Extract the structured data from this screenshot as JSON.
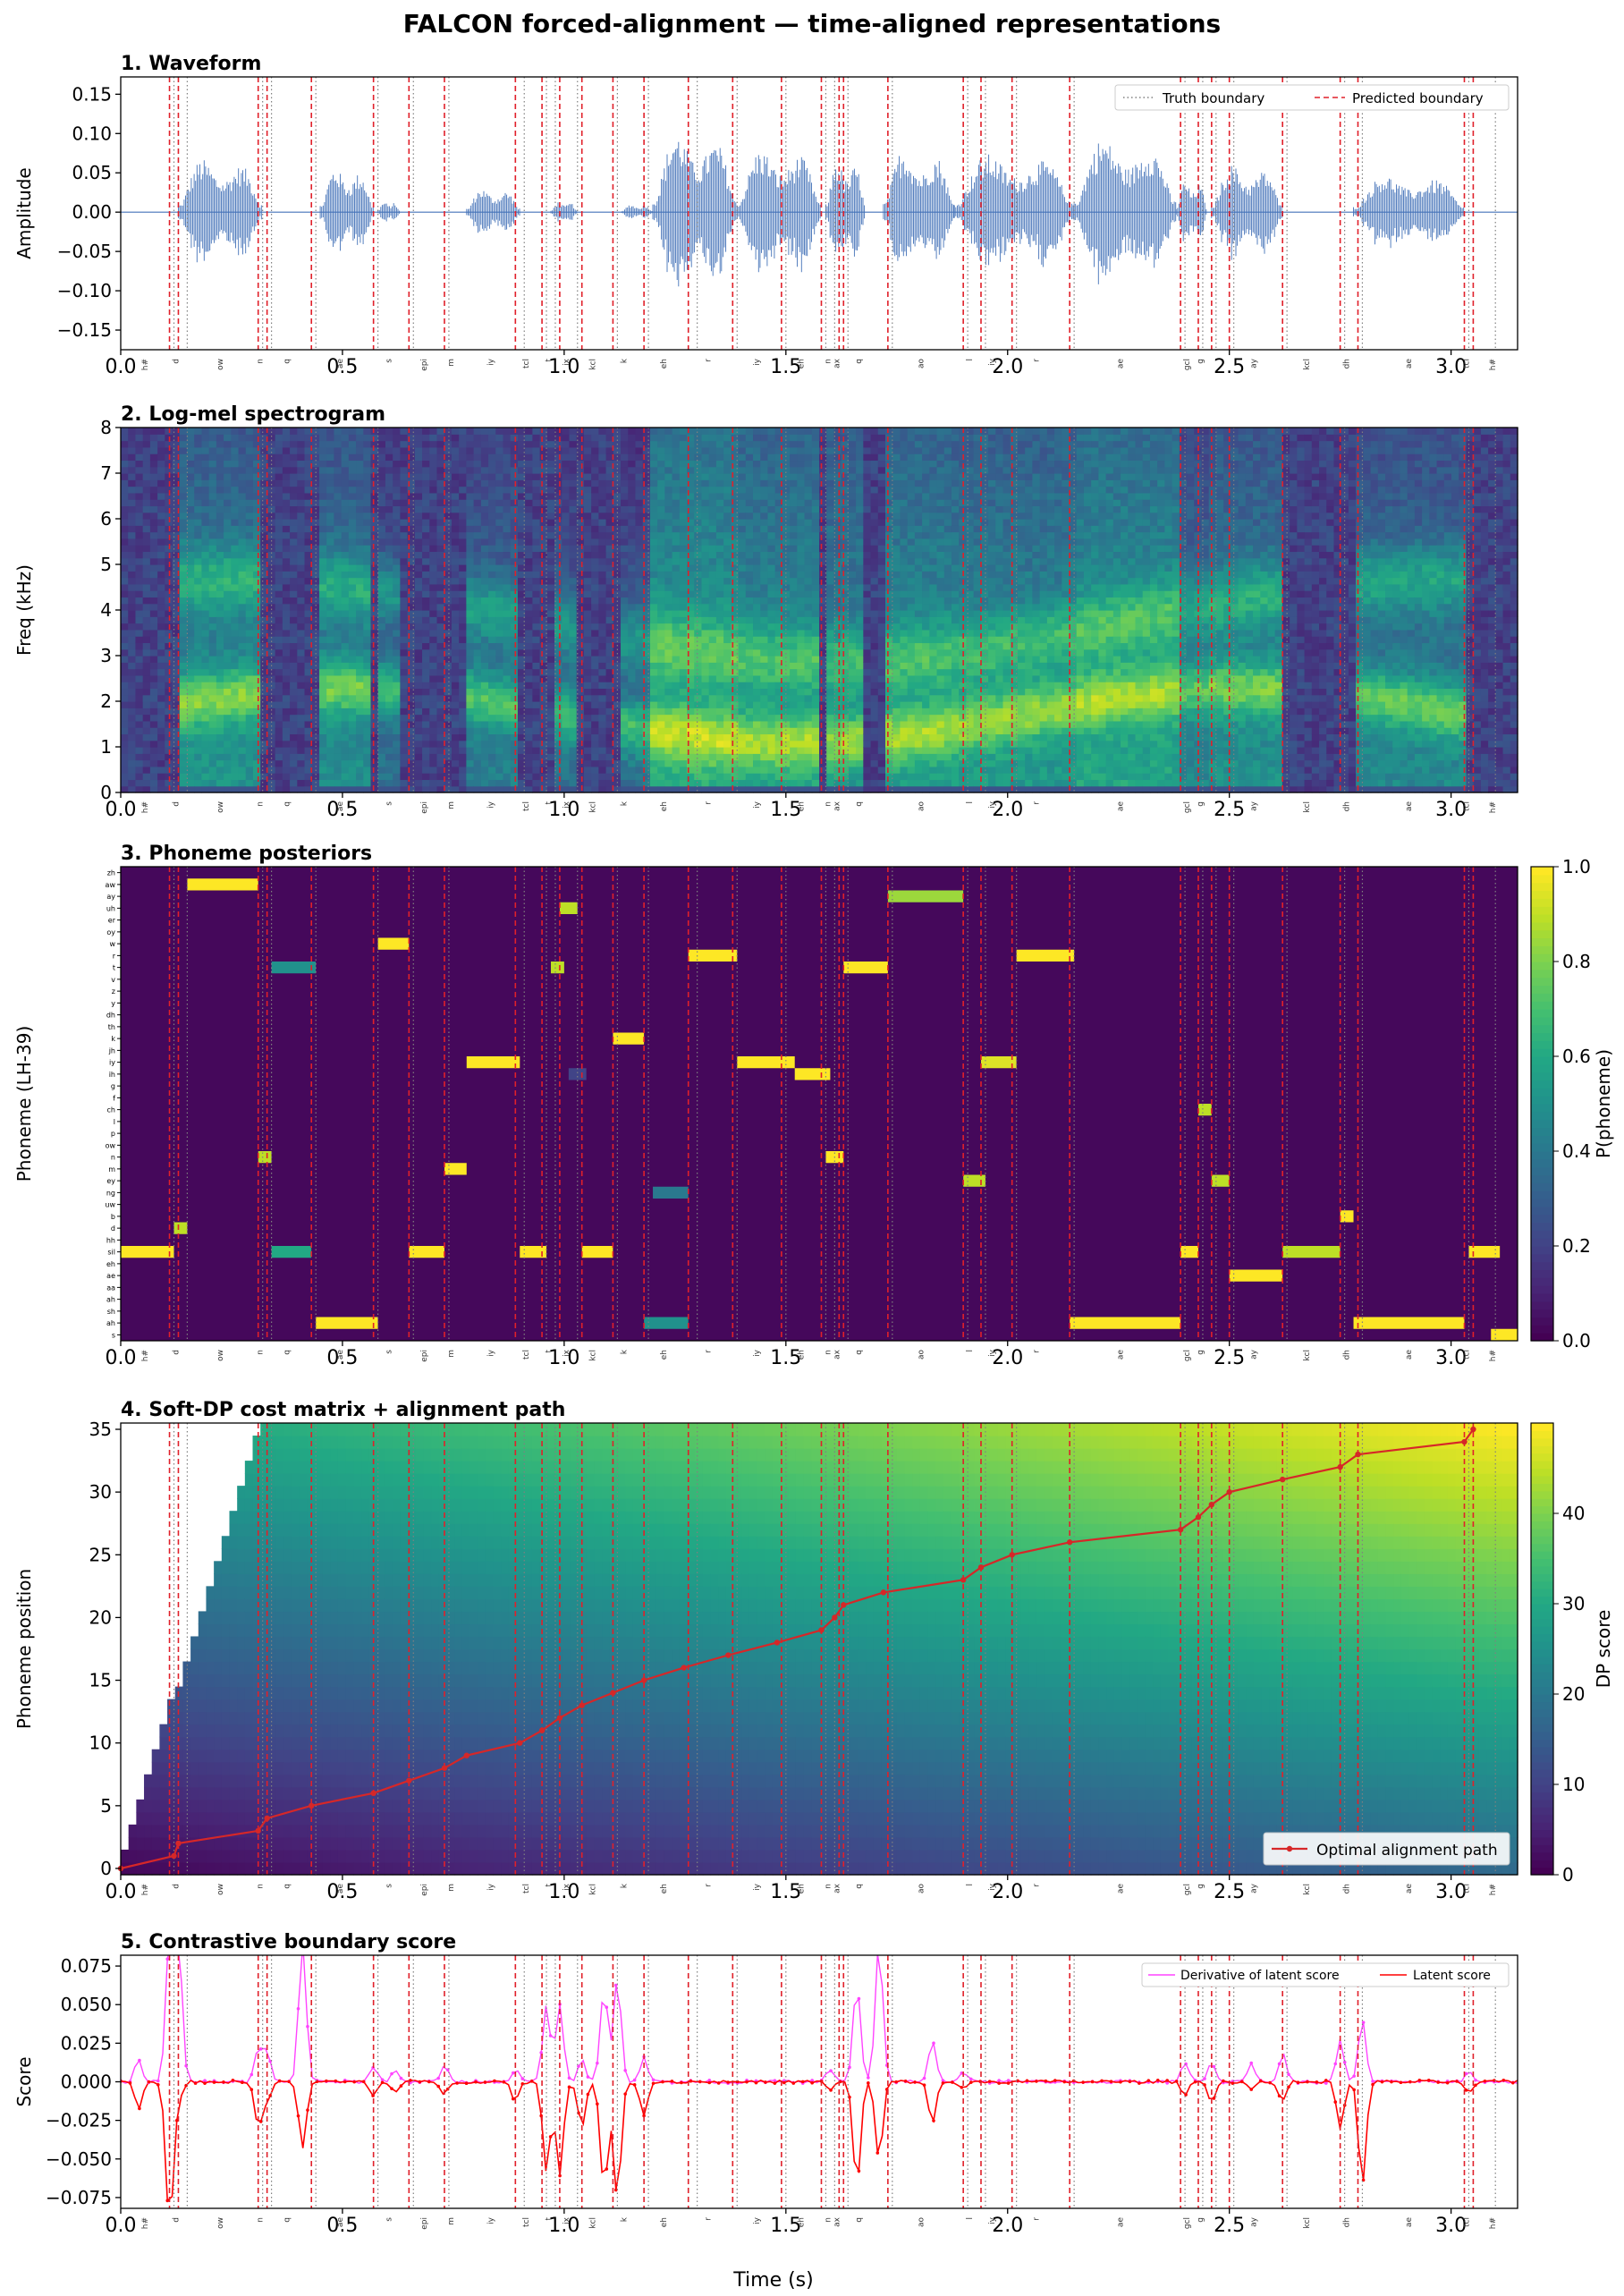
{
  "figure": {
    "title": "FALCON forced-alignment — time-aligned representations",
    "xlabel": "Time (s)"
  },
  "colors": {
    "waveform": "#4472b8",
    "truth_boundary": "#808080",
    "predicted_boundary": "#e0202a",
    "path": "#d62728",
    "derivative": "#ff44ff",
    "latent": "#ff0000",
    "viridis_low": "#440154",
    "viridis_mid": "#21918c",
    "viridis_high": "#fde725"
  },
  "chart_data": [
    {
      "id": "waveform",
      "type": "line",
      "title": "1. Waveform",
      "ylabel": "Amplitude",
      "xlim": [
        0,
        3.15
      ],
      "ylim": [
        -0.175,
        0.172
      ],
      "xticks": [
        "0.0",
        "0.5",
        "1.0",
        "1.5",
        "2.0",
        "2.5",
        "3.0"
      ],
      "yticks": [
        "0.15",
        "0.10",
        "0.05",
        "0.00",
        "−0.05",
        "−0.10",
        "−0.15"
      ],
      "legend": {
        "position": "top-right",
        "truth": "Truth boundary",
        "predicted": "Predicted boundary"
      },
      "segments": [
        {
          "t0": 0.13,
          "t1": 0.32,
          "amp": 0.1
        },
        {
          "t0": 0.45,
          "t1": 0.57,
          "amp": 0.085
        },
        {
          "t0": 0.58,
          "t1": 0.63,
          "amp": 0.02
        },
        {
          "t0": 0.78,
          "t1": 0.9,
          "amp": 0.045
        },
        {
          "t0": 0.97,
          "t1": 1.03,
          "amp": 0.02
        },
        {
          "t0": 1.13,
          "t1": 1.2,
          "amp": 0.015
        },
        {
          "t0": 1.2,
          "t1": 1.39,
          "amp": 0.15
        },
        {
          "t0": 1.39,
          "t1": 1.58,
          "amp": 0.12
        },
        {
          "t0": 1.59,
          "t1": 1.68,
          "amp": 0.1
        },
        {
          "t0": 1.72,
          "t1": 1.88,
          "amp": 0.12
        },
        {
          "t0": 1.88,
          "t1": 2.15,
          "amp": 0.11
        },
        {
          "t0": 2.15,
          "t1": 2.38,
          "amp": 0.14
        },
        {
          "t0": 2.38,
          "t1": 2.45,
          "amp": 0.06
        },
        {
          "t0": 2.46,
          "t1": 2.62,
          "amp": 0.09
        },
        {
          "t0": 2.78,
          "t1": 3.03,
          "amp": 0.07
        }
      ]
    },
    {
      "id": "spectrogram",
      "type": "heatmap",
      "title": "2. Log-mel spectrogram",
      "ylabel": "Freq (kHz)",
      "xlim": [
        0,
        3.15
      ],
      "ylim": [
        0,
        8
      ],
      "xticks": [
        "0.0",
        "0.5",
        "1.0",
        "1.5",
        "2.0",
        "2.5",
        "3.0"
      ],
      "yticks": [
        "0",
        "1",
        "2",
        "3",
        "4",
        "5",
        "6",
        "7",
        "8"
      ],
      "colormap": "viridis"
    },
    {
      "id": "posteriors",
      "type": "heatmap",
      "title": "3. Phoneme posteriors",
      "ylabel": "Phoneme (LH-39)",
      "colorbar_label": "P(phoneme)",
      "colorbar_ticks": [
        "0.0",
        "0.2",
        "0.4",
        "0.6",
        "0.8",
        "1.0"
      ],
      "xlim": [
        0,
        3.15
      ],
      "xticks": [
        "0.0",
        "0.5",
        "1.0",
        "1.5",
        "2.0",
        "2.5",
        "3.0"
      ],
      "rows": 40,
      "activations": [
        {
          "row": 1,
          "t0": 0.15,
          "t1": 0.31,
          "v": 1.0
        },
        {
          "row": 2,
          "t0": 1.73,
          "t1": 1.9,
          "v": 0.85
        },
        {
          "row": 3,
          "t0": 0.99,
          "t1": 1.03,
          "v": 0.9
        },
        {
          "row": 6,
          "t0": 0.58,
          "t1": 0.65,
          "v": 1.0
        },
        {
          "row": 7,
          "t0": 1.28,
          "t1": 1.39,
          "v": 1.0
        },
        {
          "row": 7,
          "t0": 2.02,
          "t1": 2.15,
          "v": 1.0
        },
        {
          "row": 8,
          "t0": 0.34,
          "t1": 0.44,
          "v": 0.5
        },
        {
          "row": 8,
          "t0": 0.97,
          "t1": 1.0,
          "v": 0.9
        },
        {
          "row": 8,
          "t0": 1.63,
          "t1": 1.73,
          "v": 1.0
        },
        {
          "row": 14,
          "t0": 1.11,
          "t1": 1.18,
          "v": 1.0
        },
        {
          "row": 16,
          "t0": 0.78,
          "t1": 0.9,
          "v": 1.0
        },
        {
          "row": 16,
          "t0": 1.39,
          "t1": 1.52,
          "v": 1.0
        },
        {
          "row": 16,
          "t0": 1.94,
          "t1": 2.02,
          "v": 0.95
        },
        {
          "row": 17,
          "t0": 1.52,
          "t1": 1.6,
          "v": 1.0
        },
        {
          "row": 17,
          "t0": 1.01,
          "t1": 1.05,
          "v": 0.2
        },
        {
          "row": 20,
          "t0": 2.43,
          "t1": 2.46,
          "v": 0.9
        },
        {
          "row": 24,
          "t0": 0.31,
          "t1": 0.34,
          "v": 0.9
        },
        {
          "row": 24,
          "t0": 1.59,
          "t1": 1.63,
          "v": 1.0
        },
        {
          "row": 25,
          "t0": 0.73,
          "t1": 0.78,
          "v": 1.0
        },
        {
          "row": 26,
          "t0": 1.9,
          "t1": 1.95,
          "v": 0.9
        },
        {
          "row": 26,
          "t0": 2.46,
          "t1": 2.5,
          "v": 0.9
        },
        {
          "row": 27,
          "t0": 1.2,
          "t1": 1.28,
          "v": 0.4
        },
        {
          "row": 29,
          "t0": 2.75,
          "t1": 2.78,
          "v": 1.0
        },
        {
          "row": 30,
          "t0": 0.12,
          "t1": 0.15,
          "v": 0.9
        },
        {
          "row": 32,
          "t0": 0.0,
          "t1": 0.12,
          "v": 1.0
        },
        {
          "row": 32,
          "t0": 0.34,
          "t1": 0.43,
          "v": 0.6
        },
        {
          "row": 32,
          "t0": 0.65,
          "t1": 0.73,
          "v": 1.0
        },
        {
          "row": 32,
          "t0": 0.9,
          "t1": 0.96,
          "v": 1.0
        },
        {
          "row": 32,
          "t0": 1.04,
          "t1": 1.11,
          "v": 1.0
        },
        {
          "row": 32,
          "t0": 2.39,
          "t1": 2.43,
          "v": 1.0
        },
        {
          "row": 32,
          "t0": 2.62,
          "t1": 2.75,
          "v": 0.9
        },
        {
          "row": 32,
          "t0": 3.04,
          "t1": 3.11,
          "v": 1.0
        },
        {
          "row": 34,
          "t0": 2.5,
          "t1": 2.62,
          "v": 1.0
        },
        {
          "row": 38,
          "t0": 0.44,
          "t1": 0.58,
          "v": 1.0
        },
        {
          "row": 38,
          "t0": 1.18,
          "t1": 1.28,
          "v": 0.5
        },
        {
          "row": 38,
          "t0": 2.14,
          "t1": 2.39,
          "v": 1.0
        },
        {
          "row": 38,
          "t0": 2.78,
          "t1": 3.03,
          "v": 1.0
        },
        {
          "row": 39,
          "t0": 3.09,
          "t1": 3.15,
          "v": 1.0
        }
      ]
    },
    {
      "id": "dp",
      "type": "heatmap",
      "title": "4. Soft-DP cost matrix + alignment path",
      "ylabel": "Phoneme position",
      "colorbar_label": "DP score",
      "colorbar_ticks": [
        "0",
        "10",
        "20",
        "30",
        "40"
      ],
      "xlim": [
        0,
        3.15
      ],
      "ylim": [
        -0.5,
        35.5
      ],
      "xticks": [
        "0.0",
        "0.5",
        "1.0",
        "1.5",
        "2.0",
        "2.5",
        "3.0"
      ],
      "yticks": [
        "0",
        "5",
        "10",
        "15",
        "20",
        "25",
        "30",
        "35"
      ],
      "legend": {
        "position": "bottom-right",
        "path": "Optimal alignment path"
      },
      "path": {
        "x": [
          0.0,
          0.12,
          0.13,
          0.31,
          0.33,
          0.43,
          0.57,
          0.65,
          0.73,
          0.78,
          0.9,
          0.95,
          0.99,
          1.04,
          1.11,
          1.18,
          1.27,
          1.37,
          1.48,
          1.58,
          1.61,
          1.63,
          1.72,
          1.9,
          1.94,
          2.01,
          2.14,
          2.39,
          2.43,
          2.46,
          2.5,
          2.62,
          2.75,
          2.79,
          3.03,
          3.05
        ],
        "y": [
          0,
          1,
          2,
          3,
          4,
          5,
          6,
          7,
          8,
          9,
          10,
          11,
          12,
          13,
          14,
          15,
          16,
          17,
          18,
          19,
          20,
          21,
          22,
          23,
          24,
          25,
          26,
          27,
          28,
          29,
          30,
          31,
          32,
          33,
          34,
          35
        ]
      }
    },
    {
      "id": "boundary",
      "type": "line",
      "title": "5. Contrastive boundary score",
      "ylabel": "Score",
      "xlim": [
        0,
        3.15
      ],
      "ylim": [
        -0.082,
        0.082
      ],
      "xticks": [
        "0.0",
        "0.5",
        "1.0",
        "1.5",
        "2.0",
        "2.5",
        "3.0"
      ],
      "yticks": [
        "0.075",
        "0.050",
        "0.025",
        "0.000",
        "−0.025",
        "−0.050",
        "−0.075"
      ],
      "legend": {
        "position": "top-right",
        "derivative": "Derivative of latent score",
        "latent": "Latent score"
      },
      "events": [
        {
          "t": 0.04,
          "lat": -0.017,
          "der": 0.014
        },
        {
          "t": 0.11,
          "lat": -0.09,
          "der": 0.09
        },
        {
          "t": 0.13,
          "lat": -0.013,
          "der": 0.09
        },
        {
          "t": 0.31,
          "lat": -0.028,
          "der": 0.021
        },
        {
          "t": 0.33,
          "lat": -0.012,
          "der": 0.02
        },
        {
          "t": 0.41,
          "lat": -0.044,
          "der": 0.09
        },
        {
          "t": 0.57,
          "lat": -0.009,
          "der": 0.01
        },
        {
          "t": 0.62,
          "lat": -0.007,
          "der": 0.008
        },
        {
          "t": 0.73,
          "lat": -0.008,
          "der": 0.01
        },
        {
          "t": 0.89,
          "lat": -0.012,
          "der": 0.008
        },
        {
          "t": 0.96,
          "lat": -0.058,
          "der": 0.05
        },
        {
          "t": 0.99,
          "lat": -0.06,
          "der": 0.05
        },
        {
          "t": 1.04,
          "lat": -0.03,
          "der": 0.014
        },
        {
          "t": 1.09,
          "lat": -0.07,
          "der": 0.06
        },
        {
          "t": 1.12,
          "lat": -0.075,
          "der": 0.067
        },
        {
          "t": 1.18,
          "lat": -0.022,
          "der": 0.016
        },
        {
          "t": 1.6,
          "lat": -0.005,
          "der": 0.008
        },
        {
          "t": 1.66,
          "lat": -0.067,
          "der": 0.063
        },
        {
          "t": 1.71,
          "lat": -0.05,
          "der": 0.09
        },
        {
          "t": 1.83,
          "lat": -0.027,
          "der": 0.027
        },
        {
          "t": 1.9,
          "lat": -0.005,
          "der": 0.007
        },
        {
          "t": 2.4,
          "lat": -0.008,
          "der": 0.012
        },
        {
          "t": 2.46,
          "lat": -0.012,
          "der": 0.013
        },
        {
          "t": 2.55,
          "lat": -0.005,
          "der": 0.012
        },
        {
          "t": 2.62,
          "lat": -0.013,
          "der": 0.018
        },
        {
          "t": 2.75,
          "lat": -0.03,
          "der": 0.027
        },
        {
          "t": 2.8,
          "lat": -0.067,
          "der": 0.04
        },
        {
          "t": 3.04,
          "lat": -0.008,
          "der": 0.007
        }
      ]
    }
  ],
  "predicted_boundaries": [
    0.11,
    0.13,
    0.31,
    0.33,
    0.43,
    0.57,
    0.65,
    0.73,
    0.89,
    0.95,
    0.99,
    1.04,
    1.11,
    1.18,
    1.28,
    1.38,
    1.49,
    1.58,
    1.62,
    1.63,
    1.73,
    1.9,
    1.94,
    2.01,
    2.14,
    2.39,
    2.43,
    2.46,
    2.5,
    2.62,
    2.75,
    2.79,
    3.03,
    3.05
  ],
  "truth_boundaries": [
    0.12,
    0.15,
    0.32,
    0.34,
    0.44,
    0.58,
    0.66,
    0.74,
    0.91,
    0.96,
    0.98,
    1.03,
    1.12,
    1.19,
    1.3,
    1.39,
    1.5,
    1.59,
    1.61,
    1.64,
    1.74,
    1.91,
    1.95,
    2.02,
    2.15,
    2.4,
    2.44,
    2.47,
    2.51,
    2.63,
    2.76,
    2.8,
    3.04,
    3.1
  ],
  "phone_labels": [
    {
      "t": 0.06,
      "p": "h#"
    },
    {
      "t": 0.13,
      "p": "d"
    },
    {
      "t": 0.23,
      "p": "ow"
    },
    {
      "t": 0.32,
      "p": "n"
    },
    {
      "t": 0.38,
      "p": "q"
    },
    {
      "t": 0.5,
      "p": "ae"
    },
    {
      "t": 0.61,
      "p": "s"
    },
    {
      "t": 0.69,
      "p": "epi"
    },
    {
      "t": 0.75,
      "p": "m"
    },
    {
      "t": 0.84,
      "p": "iy"
    },
    {
      "t": 0.92,
      "p": "tcl"
    },
    {
      "t": 0.97,
      "p": "t"
    },
    {
      "t": 1.01,
      "p": "ix"
    },
    {
      "t": 1.07,
      "p": "kcl"
    },
    {
      "t": 1.14,
      "p": "k"
    },
    {
      "t": 1.23,
      "p": "eh"
    },
    {
      "t": 1.33,
      "p": "r"
    },
    {
      "t": 1.44,
      "p": "iy"
    },
    {
      "t": 1.54,
      "p": "eh"
    },
    {
      "t": 1.6,
      "p": "n"
    },
    {
      "t": 1.62,
      "p": "ax"
    },
    {
      "t": 1.67,
      "p": "q"
    },
    {
      "t": 1.81,
      "p": "ao"
    },
    {
      "t": 1.92,
      "p": "l"
    },
    {
      "t": 1.97,
      "p": "iy"
    },
    {
      "t": 2.07,
      "p": "r"
    },
    {
      "t": 2.26,
      "p": "ae"
    },
    {
      "t": 2.41,
      "p": "gcl"
    },
    {
      "t": 2.44,
      "p": "g"
    },
    {
      "t": 2.56,
      "p": "ay"
    },
    {
      "t": 2.68,
      "p": "kcl"
    },
    {
      "t": 2.77,
      "p": "dh"
    },
    {
      "t": 2.91,
      "p": "ae"
    },
    {
      "t": 3.04,
      "p": "tcl"
    },
    {
      "t": 3.1,
      "p": "h#"
    }
  ],
  "phoneme_row_labels": [
    "zh",
    "aw",
    "ay",
    "uh",
    "er",
    "oy",
    "w",
    "r",
    "t",
    "v",
    "z",
    "y",
    "dh",
    "th",
    "k",
    "jh",
    "iy",
    "ih",
    "g",
    "f",
    "ch",
    "l",
    "p",
    "ow",
    "n",
    "m",
    "ey",
    "ng",
    "uw",
    "b",
    "d",
    "hh",
    "sil",
    "eh",
    "ae",
    "aa",
    "ah",
    "sh",
    "ah",
    "s"
  ]
}
